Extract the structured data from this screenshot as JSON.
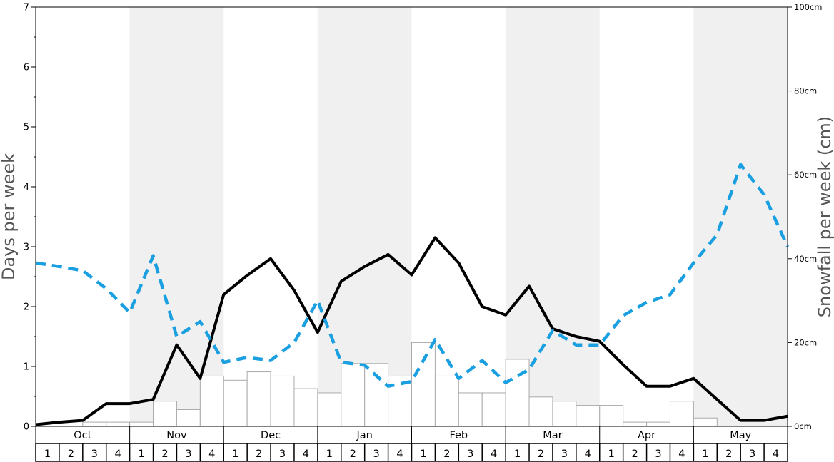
{
  "chart_data": {
    "type": "bar",
    "title": "",
    "ylabel": "Days per week",
    "y2label": "Snowfall per week (cm)",
    "ylim": [
      0,
      7
    ],
    "y2lim": [
      0,
      100
    ],
    "yticks": [
      "0",
      "1",
      "2",
      "3",
      "4",
      "5",
      "6",
      "7"
    ],
    "y2ticks": [
      "0cm",
      "20cm",
      "40cm",
      "60cm",
      "80cm",
      "100cm"
    ],
    "months": [
      "Oct",
      "Nov",
      "Dec",
      "Jan",
      "Feb",
      "Mar",
      "Apr",
      "May"
    ],
    "weeks": [
      "1",
      "2",
      "3",
      "4"
    ],
    "shaded_months": [
      "Nov",
      "Jan",
      "Mar",
      "May"
    ],
    "grid": false,
    "colors": {
      "snowfall_bars": "#ffffff",
      "bar_edge": "#aaaaaa",
      "solid_line": "#000000",
      "dashed_line": "#1a9fe0",
      "shade": "#f0f0f0"
    },
    "series": [
      {
        "kind": "bar",
        "axis": "right",
        "values": [
          0,
          0,
          1,
          1,
          1,
          6,
          4,
          12,
          11,
          13,
          12,
          9,
          8,
          15,
          15,
          12,
          20,
          12,
          8,
          8,
          16,
          7,
          6,
          5,
          5,
          1,
          1,
          6,
          2,
          0,
          0,
          0
        ]
      },
      {
        "kind": "line",
        "style": "solid",
        "axis": "left",
        "values": [
          0.03,
          0.07,
          0.1,
          0.38,
          0.38,
          0.45,
          1.36,
          0.8,
          2.2,
          2.52,
          2.8,
          2.27,
          1.57,
          2.42,
          2.67,
          2.87,
          2.53,
          3.15,
          2.73,
          2.0,
          1.86,
          2.34,
          1.63,
          1.5,
          1.42,
          1.03,
          0.67,
          0.67,
          0.8,
          0.45,
          0.1,
          0.1,
          0.17
        ]
      },
      {
        "kind": "line",
        "style": "dashed",
        "axis": "left",
        "values": [
          2.73,
          2.67,
          2.6,
          2.3,
          1.9,
          2.85,
          1.5,
          1.75,
          1.07,
          1.15,
          1.1,
          1.4,
          2.1,
          1.07,
          1.02,
          0.67,
          0.75,
          1.45,
          0.8,
          1.1,
          0.73,
          0.95,
          1.6,
          1.36,
          1.36,
          1.85,
          2.07,
          2.2,
          2.73,
          3.2,
          4.37,
          3.87,
          3.0
        ]
      }
    ]
  }
}
